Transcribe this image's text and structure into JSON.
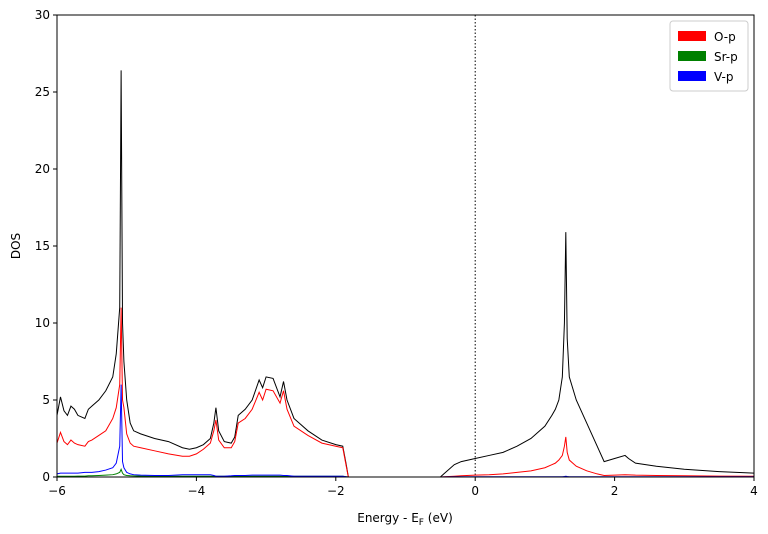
{
  "chart_data": {
    "type": "line",
    "xlabel": {
      "text": "Energy - E",
      "sub": "F",
      "post": " (eV)"
    },
    "ylabel": "DOS",
    "x": [
      -6,
      -5.95,
      -5.9,
      -5.85,
      -5.8,
      -5.75,
      -5.7,
      -5.6,
      -5.55,
      -5.5,
      -5.4,
      -5.3,
      -5.2,
      -5.15,
      -5.1,
      -5.08,
      -5.06,
      -5.04,
      -5.0,
      -4.95,
      -4.9,
      -4.8,
      -4.6,
      -4.4,
      -4.2,
      -4.1,
      -4.0,
      -3.9,
      -3.8,
      -3.75,
      -3.72,
      -3.68,
      -3.6,
      -3.5,
      -3.45,
      -3.4,
      -3.3,
      -3.2,
      -3.1,
      -3.05,
      -3.0,
      -2.9,
      -2.8,
      -2.75,
      -2.7,
      -2.6,
      -2.4,
      -2.2,
      -2.0,
      -1.9,
      -1.85,
      -1.82,
      -1.0,
      -0.5,
      -0.45,
      -0.3,
      -0.2,
      0,
      0.2,
      0.4,
      0.6,
      0.8,
      1.0,
      1.1,
      1.15,
      1.2,
      1.25,
      1.28,
      1.3,
      1.32,
      1.35,
      1.45,
      1.6,
      1.75,
      1.85,
      2.0,
      2.15,
      2.2,
      2.3,
      2.6,
      3.0,
      3.5,
      4.0
    ],
    "series": [
      {
        "color": "#000000",
        "values": [
          4.0,
          5.2,
          4.3,
          4.0,
          4.6,
          4.4,
          4.0,
          3.8,
          4.4,
          4.6,
          5.0,
          5.6,
          6.5,
          8.0,
          11,
          26.4,
          10,
          7.5,
          5.0,
          3.5,
          3.0,
          2.8,
          2.5,
          2.3,
          1.9,
          1.8,
          1.9,
          2.1,
          2.5,
          3.5,
          4.5,
          3.0,
          2.3,
          2.2,
          2.6,
          4.0,
          4.4,
          5.0,
          6.3,
          5.8,
          6.5,
          6.4,
          5.2,
          6.2,
          5.0,
          3.8,
          3.0,
          2.4,
          2.1,
          2.0,
          0.8,
          0,
          0,
          0,
          0.2,
          0.8,
          1.0,
          1.2,
          1.4,
          1.6,
          2.0,
          2.5,
          3.3,
          4.0,
          4.4,
          5.0,
          6.5,
          10,
          15.9,
          9,
          6.5,
          5.0,
          3.5,
          2.0,
          1.0,
          1.2,
          1.4,
          1.2,
          0.9,
          0.7,
          0.5,
          0.35,
          0.25
        ]
      },
      {
        "name": "O-p",
        "color": "#ff0000",
        "values": [
          2.2,
          2.9,
          2.3,
          2.1,
          2.4,
          2.2,
          2.1,
          2.0,
          2.3,
          2.4,
          2.7,
          3.0,
          3.8,
          4.5,
          6,
          11,
          5,
          4.5,
          2.8,
          2.2,
          2.0,
          1.9,
          1.7,
          1.5,
          1.35,
          1.35,
          1.5,
          1.8,
          2.2,
          3.0,
          3.7,
          2.4,
          1.9,
          1.9,
          2.3,
          3.5,
          3.8,
          4.4,
          5.5,
          5.0,
          5.7,
          5.6,
          4.8,
          5.6,
          4.4,
          3.3,
          2.7,
          2.2,
          2.0,
          1.9,
          0.7,
          0,
          0,
          0,
          0.02,
          0.05,
          0.08,
          0.12,
          0.15,
          0.2,
          0.3,
          0.4,
          0.6,
          0.8,
          0.9,
          1.1,
          1.4,
          2.0,
          2.6,
          1.6,
          1.1,
          0.7,
          0.4,
          0.2,
          0.1,
          0.12,
          0.15,
          0.14,
          0.12,
          0.1,
          0.08,
          0.06,
          0.05
        ]
      },
      {
        "name": "Sr-p",
        "color": "#008000",
        "values": [
          0.05,
          0.05,
          0.05,
          0.05,
          0.05,
          0.05,
          0.06,
          0.06,
          0.08,
          0.08,
          0.1,
          0.12,
          0.15,
          0.2,
          0.3,
          0.5,
          0.25,
          0.15,
          0.1,
          0.08,
          0.07,
          0.06,
          0.05,
          0.05,
          0.05,
          0.05,
          0.05,
          0.05,
          0.05,
          0.05,
          0.05,
          0.05,
          0.05,
          0.05,
          0.05,
          0.05,
          0.05,
          0.05,
          0.05,
          0.05,
          0.05,
          0.05,
          0.05,
          0.05,
          0.05,
          0.05,
          0.05,
          0.05,
          0.05,
          0.05,
          0.02,
          0,
          0,
          0,
          0,
          0,
          0,
          0,
          0,
          0,
          0,
          0,
          0,
          0,
          0,
          0,
          0,
          0,
          0,
          0,
          0,
          0,
          0,
          0,
          0,
          0,
          0,
          0,
          0,
          0,
          0,
          0,
          0
        ]
      },
      {
        "name": "V-p",
        "color": "#0000ff",
        "values": [
          0.2,
          0.25,
          0.25,
          0.25,
          0.25,
          0.25,
          0.25,
          0.3,
          0.3,
          0.3,
          0.35,
          0.45,
          0.6,
          0.9,
          2.0,
          6.0,
          1.0,
          0.6,
          0.3,
          0.2,
          0.15,
          0.12,
          0.1,
          0.1,
          0.15,
          0.15,
          0.15,
          0.15,
          0.15,
          0.1,
          0.05,
          0.05,
          0.05,
          0.08,
          0.1,
          0.1,
          0.1,
          0.12,
          0.12,
          0.12,
          0.12,
          0.12,
          0.12,
          0.1,
          0.1,
          0.05,
          0.05,
          0.05,
          0.05,
          0.05,
          0.02,
          0,
          0,
          0,
          0.01,
          0.02,
          0.02,
          0.02,
          0.02,
          0.02,
          0.02,
          0.02,
          0.02,
          0.02,
          0.02,
          0.02,
          0.02,
          0.03,
          0.05,
          0.03,
          0.02,
          0.02,
          0.02,
          0.02,
          0.02,
          0.02,
          0.02,
          0.02,
          0.02,
          0.02,
          0.02,
          0.02,
          0.02
        ]
      }
    ],
    "xlim": [
      -6,
      4
    ],
    "xticks": [
      {
        "value": -6,
        "label": "−6"
      },
      {
        "value": -4,
        "label": "−4"
      },
      {
        "value": -2,
        "label": "−2"
      },
      0,
      2,
      4
    ],
    "ylim": [
      0,
      30
    ],
    "yticks": [
      0,
      5,
      10,
      15,
      20,
      25,
      30
    ],
    "vline": 0,
    "legend": "upper right"
  }
}
